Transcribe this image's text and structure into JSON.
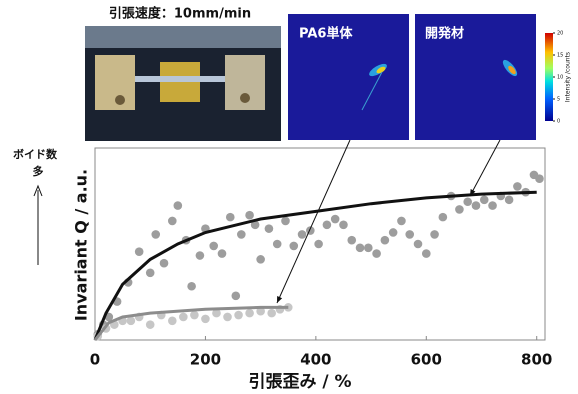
{
  "chart_data": {
    "type": "scatter",
    "photo_caption": "引張速度：10mm/min",
    "images": [
      {
        "label": "PA6単体"
      },
      {
        "label": "開発材"
      }
    ],
    "colorbar": {
      "ticks": [
        0,
        5,
        10,
        15,
        20
      ],
      "label": "Intensity /counts",
      "lim": [
        0,
        20
      ]
    },
    "annotation": {
      "line1": "ボイド数",
      "line2": "多"
    },
    "ylabel": "Invariant Q / a.u.",
    "xlabel": "引張歪み / %",
    "xlim": [
      0,
      815
    ],
    "xticks": [
      0,
      200,
      400,
      600,
      800
    ],
    "ylim": [
      0,
      100
    ],
    "series": [
      {
        "color": "#9d9d9d",
        "x": [
          5,
          15,
          25,
          40,
          60,
          80,
          100,
          110,
          125,
          140,
          150,
          165,
          175,
          190,
          200,
          215,
          230,
          245,
          255,
          265,
          280,
          290,
          300,
          315,
          330,
          345,
          360,
          375,
          390,
          405,
          420,
          435,
          450,
          465,
          480,
          495,
          510,
          525,
          540,
          555,
          570,
          585,
          600,
          615,
          630,
          645,
          660,
          675,
          690,
          705,
          720,
          735,
          750,
          765,
          780,
          795,
          805
        ],
        "values": [
          3,
          8,
          12,
          20,
          30,
          46,
          35,
          55,
          40,
          62,
          70,
          52,
          28,
          44,
          58,
          49,
          45,
          64,
          23,
          55,
          65,
          60,
          42,
          58,
          50,
          62,
          49,
          55,
          57,
          50,
          60,
          63,
          60,
          52,
          48,
          48,
          45,
          52,
          56,
          62,
          55,
          50,
          45,
          55,
          64,
          75,
          68,
          72,
          70,
          73,
          70,
          75,
          73,
          80,
          77,
          86,
          84
        ]
      },
      {
        "color": "#c6c6c6",
        "x": [
          5,
          20,
          35,
          50,
          65,
          80,
          100,
          120,
          140,
          160,
          180,
          200,
          220,
          240,
          260,
          280,
          300,
          320,
          335,
          350
        ],
        "values": [
          2,
          6,
          8,
          10,
          10,
          12,
          8,
          13,
          10,
          12,
          13,
          11,
          14,
          12,
          13,
          14,
          15,
          14,
          16,
          17
        ]
      }
    ],
    "fits": [
      {
        "color": "#111111",
        "x": [
          0,
          20,
          50,
          100,
          150,
          200,
          300,
          400,
          500,
          600,
          700,
          800
        ],
        "values": [
          0,
          14,
          29,
          42,
          50,
          56,
          63,
          67,
          71,
          74,
          76,
          77
        ]
      },
      {
        "color": "#8c8c8c",
        "x": [
          0,
          25,
          50,
          100,
          200,
          300,
          350
        ],
        "values": [
          0,
          9,
          12,
          14,
          16,
          17,
          17
        ]
      }
    ]
  }
}
